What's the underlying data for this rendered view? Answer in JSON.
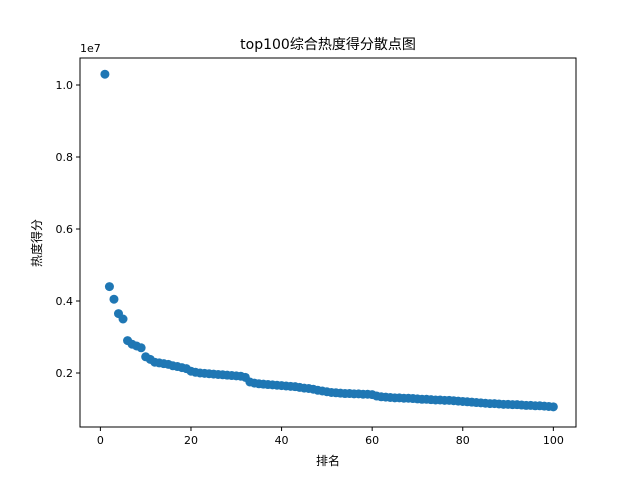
{
  "chart_data": {
    "type": "scatter",
    "title": "top100综合热度得分散点图",
    "xlabel": "排名",
    "ylabel": "热度得分",
    "offset_label": "1e7",
    "xlim": [
      -4.5,
      105
    ],
    "ylim": [
      0.5,
      10.75
    ],
    "y_unit_multiplier": 10000000,
    "xticks": [
      0,
      20,
      40,
      60,
      80,
      100
    ],
    "xtick_labels": [
      "0",
      "20",
      "40",
      "60",
      "80",
      "100"
    ],
    "yticks": [
      2,
      4,
      6,
      8,
      10
    ],
    "ytick_labels": [
      "0.2",
      "0.4",
      "0.6",
      "0.8",
      "1.0"
    ],
    "grid": false,
    "marker_color": "#1f77b4",
    "x": [
      1,
      2,
      3,
      4,
      5,
      6,
      7,
      8,
      9,
      10,
      11,
      12,
      13,
      14,
      15,
      16,
      17,
      18,
      19,
      20,
      21,
      22,
      23,
      24,
      25,
      26,
      27,
      28,
      29,
      30,
      31,
      32,
      33,
      34,
      35,
      36,
      37,
      38,
      39,
      40,
      41,
      42,
      43,
      44,
      45,
      46,
      47,
      48,
      49,
      50,
      51,
      52,
      53,
      54,
      55,
      56,
      57,
      58,
      59,
      60,
      61,
      62,
      63,
      64,
      65,
      66,
      67,
      68,
      69,
      70,
      71,
      72,
      73,
      74,
      75,
      76,
      77,
      78,
      79,
      80,
      81,
      82,
      83,
      84,
      85,
      86,
      87,
      88,
      89,
      90,
      91,
      92,
      93,
      94,
      95,
      96,
      97,
      98,
      99,
      100
    ],
    "y": [
      10.3,
      4.4,
      4.05,
      3.65,
      3.5,
      2.9,
      2.8,
      2.75,
      2.7,
      2.45,
      2.38,
      2.3,
      2.28,
      2.26,
      2.24,
      2.2,
      2.18,
      2.15,
      2.12,
      2.05,
      2.02,
      2.0,
      1.99,
      1.98,
      1.97,
      1.96,
      1.95,
      1.94,
      1.93,
      1.92,
      1.91,
      1.88,
      1.75,
      1.72,
      1.7,
      1.69,
      1.68,
      1.67,
      1.66,
      1.65,
      1.64,
      1.63,
      1.62,
      1.6,
      1.58,
      1.57,
      1.55,
      1.52,
      1.5,
      1.48,
      1.46,
      1.45,
      1.44,
      1.43,
      1.43,
      1.42,
      1.42,
      1.41,
      1.41,
      1.4,
      1.36,
      1.34,
      1.33,
      1.32,
      1.31,
      1.31,
      1.3,
      1.3,
      1.29,
      1.28,
      1.27,
      1.27,
      1.26,
      1.25,
      1.25,
      1.24,
      1.24,
      1.23,
      1.22,
      1.21,
      1.2,
      1.19,
      1.18,
      1.17,
      1.16,
      1.15,
      1.15,
      1.14,
      1.13,
      1.13,
      1.12,
      1.12,
      1.11,
      1.1,
      1.1,
      1.09,
      1.09,
      1.08,
      1.07,
      1.06
    ]
  }
}
